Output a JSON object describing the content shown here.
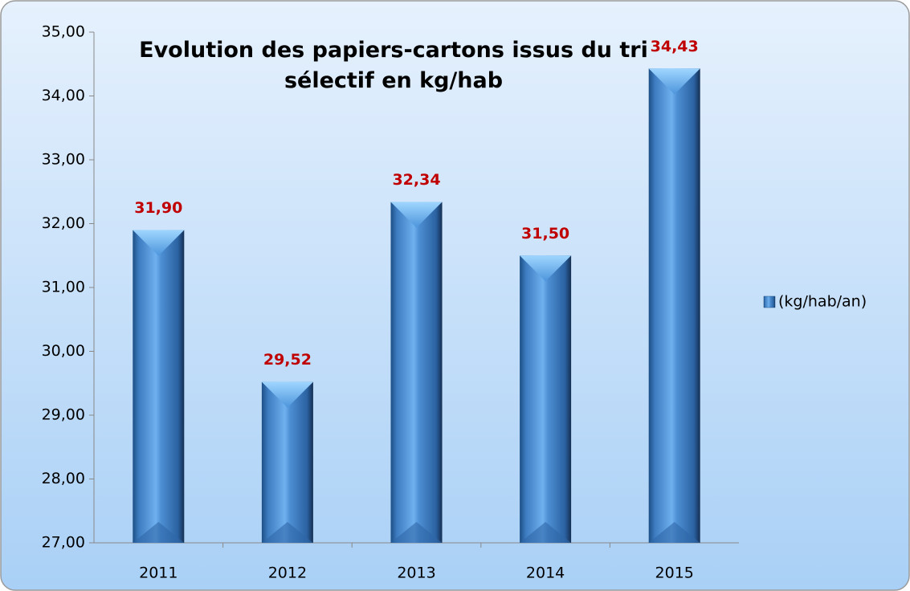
{
  "chart_data": {
    "type": "bar",
    "title": "Evolution des papiers-cartons issus du tri sélectif en kg/hab",
    "categories": [
      "2011",
      "2012",
      "2013",
      "2014",
      "2015"
    ],
    "series": [
      {
        "name": "(kg/hab/an)",
        "color": "#3f7fc4",
        "values": [
          31.9,
          29.52,
          32.34,
          31.5,
          34.43
        ],
        "value_labels": [
          "31,90",
          "29,52",
          "32,34",
          "31,50",
          "34,43"
        ]
      }
    ],
    "ylim": [
      27,
      35
    ],
    "yticks": [
      {
        "value": 27,
        "label": "27,00"
      },
      {
        "value": 28,
        "label": "28,00"
      },
      {
        "value": 29,
        "label": "29,00"
      },
      {
        "value": 30,
        "label": "30,00"
      },
      {
        "value": 31,
        "label": "31,00"
      },
      {
        "value": 32,
        "label": "32,00"
      },
      {
        "value": 33,
        "label": "33,00"
      },
      {
        "value": 34,
        "label": "34,00"
      },
      {
        "value": 35,
        "label": "35,00"
      }
    ],
    "grid": false,
    "legend": "right"
  }
}
